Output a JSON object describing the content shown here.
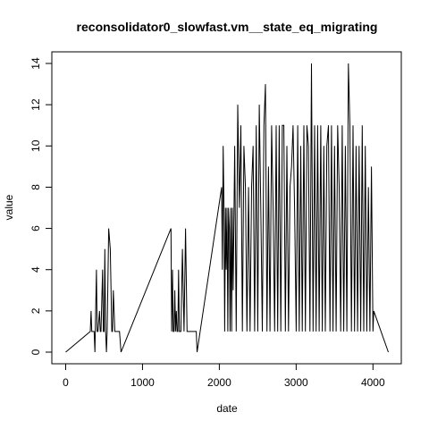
{
  "chart_data": {
    "type": "line",
    "title": "reconsolidator0_slowfast.vm__state_eq_migrating",
    "xlabel": "date",
    "ylabel": "value",
    "xlim": [
      0,
      4200
    ],
    "ylim": [
      0,
      14
    ],
    "x_ticks": [
      0,
      1000,
      2000,
      3000,
      4000
    ],
    "y_ticks": [
      0,
      2,
      4,
      6,
      8,
      10,
      12,
      14
    ],
    "grid": false,
    "series": [
      {
        "x": [
          0,
          320,
          330,
          340,
          350,
          360,
          370,
          380,
          400,
          410,
          420,
          440,
          450,
          460,
          480,
          490,
          500,
          510,
          520,
          530,
          540,
          560,
          580,
          600,
          610,
          620,
          640,
          660,
          670,
          680,
          690,
          700,
          720,
          1370,
          1380,
          1390,
          1400,
          1410,
          1420,
          1430,
          1440,
          1450,
          1460,
          1470,
          1480,
          1500,
          1520,
          1540,
          1560,
          1580,
          1600,
          1620,
          1640,
          1650,
          1660,
          1670,
          1680,
          1690,
          1700,
          1710,
          2030,
          2040,
          2050,
          2060,
          2070,
          2080,
          2090,
          2100,
          2110,
          2120,
          2130,
          2140,
          2150,
          2160,
          2170,
          2180,
          2200,
          2220,
          2240,
          2260,
          2280,
          2300,
          2320,
          2340,
          2360,
          2380,
          2400,
          2420,
          2440,
          2460,
          2480,
          2500,
          2520,
          2540,
          2560,
          2580,
          2600,
          2620,
          2640,
          2660,
          2680,
          2700,
          2720,
          2740,
          2760,
          2780,
          2800,
          2820,
          2840,
          2860,
          2880,
          2900,
          2920,
          2940,
          2960,
          2980,
          3000,
          3020,
          3040,
          3060,
          3080,
          3100,
          3120,
          3140,
          3160,
          3180,
          3200,
          3220,
          3240,
          3260,
          3280,
          3300,
          3320,
          3340,
          3360,
          3380,
          3400,
          3420,
          3440,
          3460,
          3480,
          3500,
          3520,
          3540,
          3560,
          3580,
          3600,
          3620,
          3640,
          3660,
          3680,
          3700,
          3720,
          3740,
          3760,
          3780,
          3800,
          3820,
          3840,
          3860,
          3880,
          3900,
          3920,
          3940,
          3960,
          3980,
          4000,
          4010,
          4200
        ],
        "y": [
          0,
          1,
          2,
          1,
          1,
          1,
          1,
          0,
          4,
          1,
          1,
          2,
          1,
          1,
          4,
          1,
          1,
          5,
          1,
          0,
          1,
          6,
          5,
          1,
          1,
          3,
          1,
          1,
          1,
          1,
          1,
          1,
          0,
          6,
          1,
          4,
          1,
          1,
          3,
          1,
          2,
          1,
          1,
          4,
          1,
          1,
          5,
          1,
          6,
          1,
          1,
          1,
          1,
          1,
          1,
          1,
          1,
          1,
          1,
          0,
          8,
          4,
          10,
          7,
          1,
          7,
          4,
          7,
          1,
          7,
          6,
          1,
          7,
          1,
          7,
          3,
          10,
          1,
          12,
          7,
          11,
          1,
          10,
          8,
          1,
          8,
          1,
          8,
          10,
          1,
          11,
          1,
          12,
          7,
          1,
          11,
          13,
          1,
          9,
          1,
          11,
          7,
          1,
          11,
          1,
          11,
          1,
          11,
          11,
          1,
          10,
          1,
          8,
          9,
          11,
          7,
          1,
          11,
          1,
          10,
          1,
          11,
          1,
          11,
          10,
          1,
          14,
          1,
          11,
          1,
          11,
          1,
          11,
          1,
          10,
          1,
          10,
          11,
          1,
          11,
          1,
          10,
          1,
          11,
          8,
          1,
          11,
          1,
          10,
          1,
          14,
          11,
          1,
          11,
          1,
          10,
          1,
          10,
          1,
          11,
          1,
          10,
          1,
          8,
          1,
          9,
          1,
          2,
          0
        ]
      }
    ]
  }
}
